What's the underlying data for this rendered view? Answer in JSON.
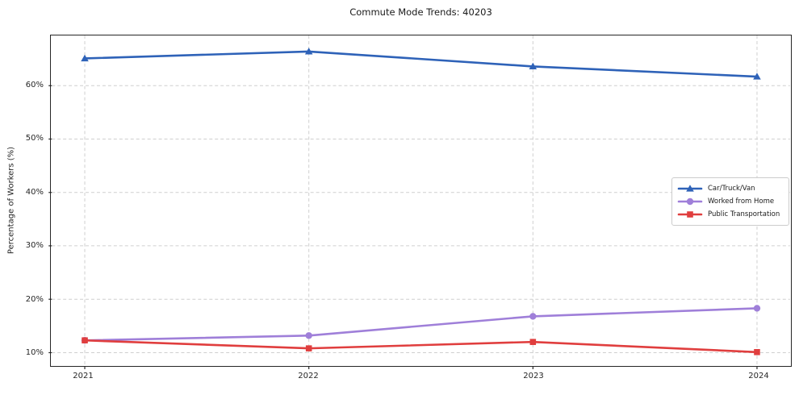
{
  "title": "Commute Mode Trends: 40203",
  "chart_data": {
    "type": "line",
    "title": "Commute Mode Trends: 40203",
    "xlabel": "",
    "ylabel": "Percentage of Workers (%)",
    "x": [
      2021,
      2022,
      2023,
      2024
    ],
    "x_tick_labels": [
      "2021",
      "2022",
      "2023",
      "2024"
    ],
    "y_ticks": [
      10,
      20,
      30,
      40,
      50,
      60
    ],
    "y_tick_labels": [
      "10%",
      "20%",
      "30%",
      "40%",
      "50%",
      "60%"
    ],
    "ylim": [
      7.5,
      69.4
    ],
    "grid": true,
    "grid_style": "dashed",
    "legend_position": "center-right",
    "series": [
      {
        "name": "Car/Truck/Van",
        "marker": "triangle",
        "color": "#2e62b8",
        "values": [
          65.1,
          66.4,
          63.6,
          61.7
        ]
      },
      {
        "name": "Worked from Home",
        "marker": "circle",
        "color": "#9f7fd9",
        "values": [
          12.3,
          13.2,
          16.8,
          18.3
        ]
      },
      {
        "name": "Public Transportation",
        "marker": "square",
        "color": "#e03e3e",
        "values": [
          12.3,
          10.8,
          12.0,
          10.1
        ]
      }
    ],
    "colors": {
      "grid": "#cfcfcf",
      "axis": "#262626",
      "text": "#1a1a1a",
      "background": "#ffffff"
    }
  }
}
